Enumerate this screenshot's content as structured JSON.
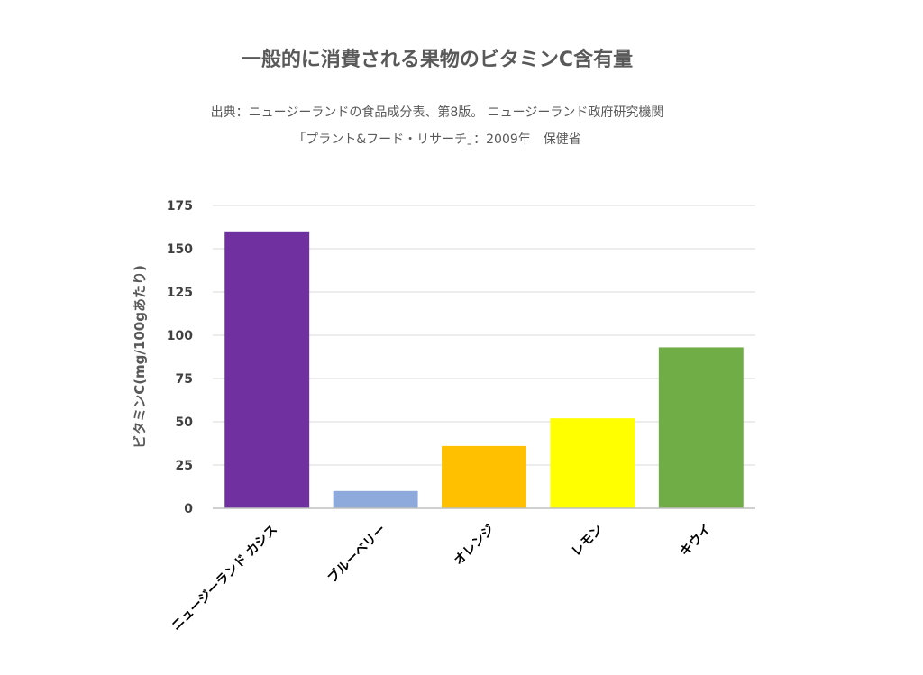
{
  "chart_data": {
    "type": "bar",
    "title": "一般的に消費される果物のビタミンC含有量",
    "subtitle_lines": [
      "出典：ニュージーランドの食品成分表、第8版。 ニュージーランド政府研究機関",
      "「プラント&フード・リサーチ」：2009年　保健省"
    ],
    "ylabel": "ビタミンC(mg/100gあたり)",
    "xlabel": "",
    "ylim": [
      0,
      175
    ],
    "yticks": [
      0,
      25,
      50,
      75,
      100,
      125,
      150,
      175
    ],
    "grid": true,
    "categories": [
      "ニュージーランド カシス",
      "ブルーベリー",
      "オレンジ",
      "レモン",
      "キウイ"
    ],
    "values": [
      160,
      10,
      36,
      52,
      93
    ],
    "colors": [
      "#7030A0",
      "#8EA9DB",
      "#FFC000",
      "#FFFF00",
      "#70AD47"
    ]
  }
}
